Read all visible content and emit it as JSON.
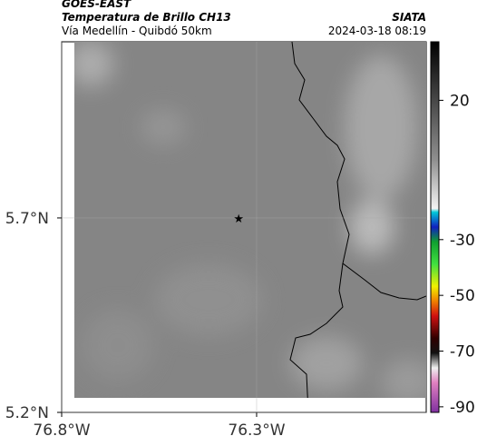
{
  "header": {
    "title": "GOES-EAST",
    "subtitle": "Temperatura de Brillo CH13",
    "region": "Vía Medellín - Quibdó 50km",
    "source": "SIATA",
    "timestamp": "2024-03-18 08:19"
  },
  "map": {
    "lonlim": [
      -76.8,
      -75.865
    ],
    "latlim": [
      5.2,
      6.153
    ],
    "lonticks": [
      {
        "value": -76.8,
        "label": "76.8°W"
      },
      {
        "value": -76.3,
        "label": "76.3°W"
      }
    ],
    "latticks": [
      {
        "value": 5.7,
        "label": "5.7°N"
      },
      {
        "value": 5.2,
        "label": "5.2°N"
      }
    ],
    "marker": {
      "lon": -76.346,
      "lat": 5.7
    },
    "grid": true
  },
  "colorbar": {
    "lim": [
      -92,
      41
    ],
    "ticks": [
      20,
      -30,
      -50,
      -70,
      -90
    ]
  }
}
